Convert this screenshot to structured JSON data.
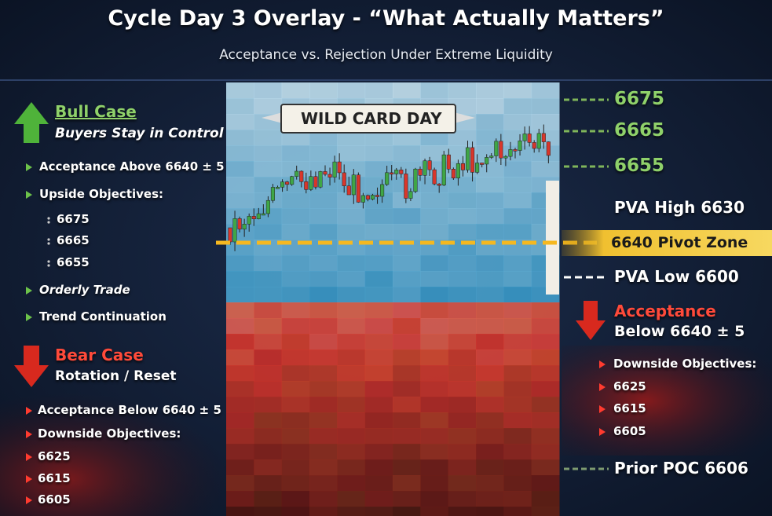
{
  "header": {
    "title": "Cycle Day 3 Overlay - “What Actually Matters”",
    "subtitle": "Acceptance vs. Rejection Under Extreme Liquidity"
  },
  "bull_case": {
    "title": "Bull Case",
    "subtitle": "Buyers Stay in Control",
    "items": [
      "Acceptance Above 6640 ± 5",
      "Upside Objectives:",
      "6675",
      "6665",
      "6655",
      "Orderly Trade",
      "Trend Continuation"
    ]
  },
  "bear_case": {
    "title": "Bear Case",
    "subtitle": "Rotation / Reset",
    "items": [
      "Acceptance Below 6640 ± 5",
      "Downside Objectives:",
      "6625",
      "6615",
      "6605"
    ]
  },
  "chart": {
    "banner": "WILD CARD DAY"
  },
  "levels": {
    "upside": [
      "6675",
      "6665",
      "6655"
    ],
    "pva_high": "PVA High 6630",
    "pivot": "6640 Pivot Zone",
    "pva_low": "PVA Low 6600"
  },
  "acceptance_panel": {
    "title": "Acceptance",
    "subtitle": "Below 6640 ± 5",
    "items": [
      "Downside Objectives:",
      "6625",
      "6615",
      "6605"
    ]
  },
  "prior_poc": "Prior POC 6606"
}
